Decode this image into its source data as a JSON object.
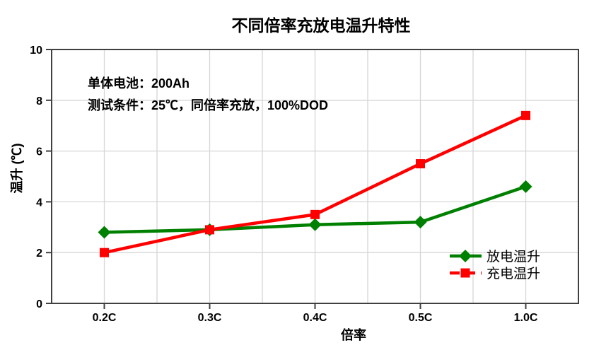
{
  "page": {
    "background": "#FFFFFF"
  },
  "chart_data": {
    "type": "line",
    "title": "不同倍率充放电温升特性",
    "xlabel": "倍率",
    "ylabel": "温升 (℃)",
    "categories": [
      "0.2C",
      "0.3C",
      "0.4C",
      "0.5C",
      "1.0C"
    ],
    "series": [
      {
        "name": "放电温升",
        "color": "#008000",
        "marker": "diamond",
        "values": [
          2.8,
          2.9,
          3.1,
          3.2,
          4.6
        ]
      },
      {
        "name": "充电温升",
        "color": "#FF0000",
        "marker": "square",
        "values": [
          2.0,
          2.9,
          3.5,
          5.5,
          7.4
        ]
      }
    ],
    "ylim": [
      0,
      10
    ],
    "yticks": [
      0,
      2,
      4,
      6,
      8,
      10
    ],
    "grid": true,
    "legend_position": "inside-lower-right",
    "annotations": [
      "单体电池：200Ah",
      "测试条件：25℃，同倍率充放，100%DOD"
    ],
    "colors": {
      "gridline": "#D6D6D6",
      "frame": "#404040",
      "text": "#000000"
    }
  }
}
